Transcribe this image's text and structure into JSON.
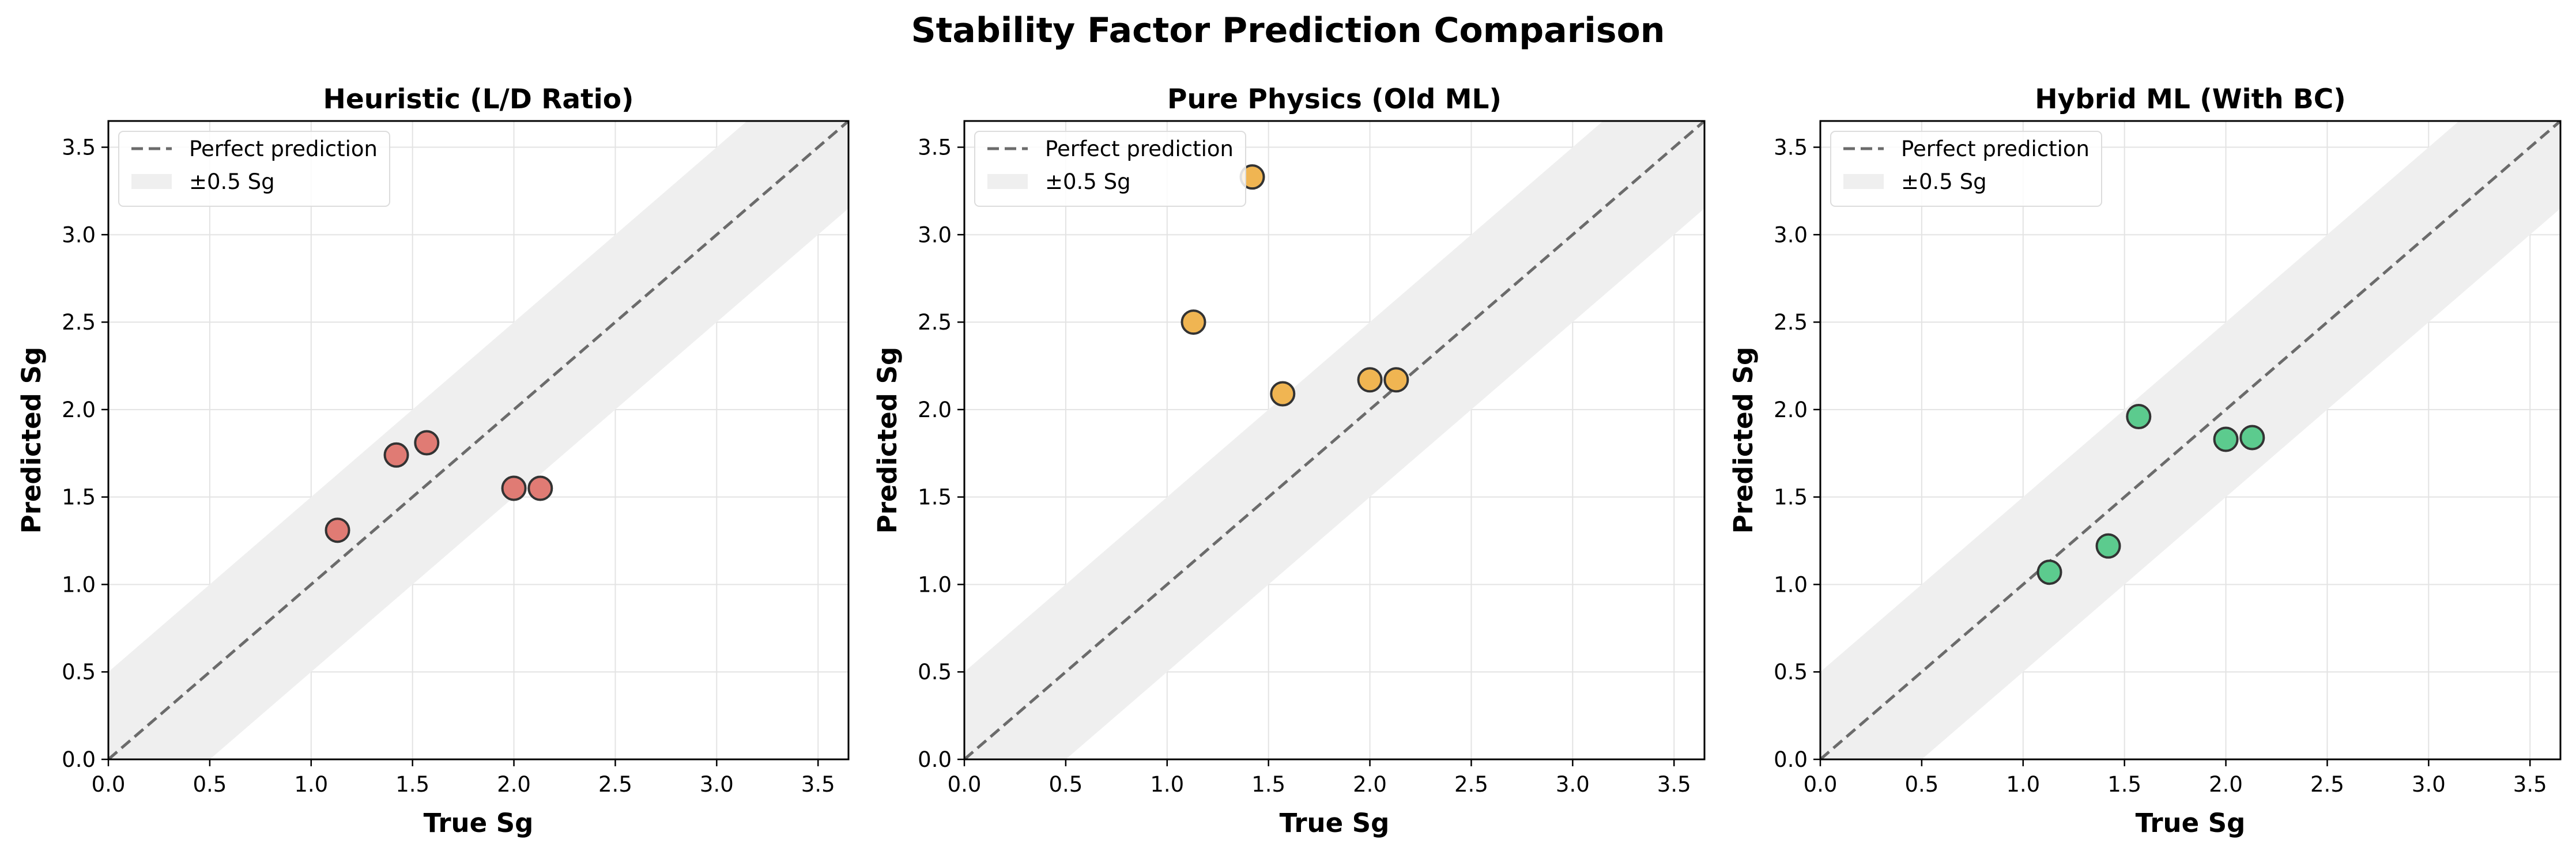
{
  "title": "Stability Factor Prediction Comparison",
  "colors": {
    "reference_line": "#6b6b6b",
    "band": "#efefef",
    "grid": "#e3e3e3",
    "axis": "#000000",
    "marker_edge": "#333333"
  },
  "chart_data": [
    {
      "type": "scatter",
      "title": "Heuristic (L/D Ratio)",
      "xlabel": "True Sg",
      "ylabel": "Predicted Sg",
      "xlim": [
        0,
        3.65
      ],
      "ylim": [
        0,
        3.65
      ],
      "xticks": [
        "0.0",
        "0.5",
        "1.0",
        "1.5",
        "2.0",
        "2.5",
        "3.0",
        "3.5"
      ],
      "yticks": [
        "0.0",
        "0.5",
        "1.0",
        "1.5",
        "2.0",
        "2.5",
        "3.0",
        "3.5"
      ],
      "grid": true,
      "legend_position": "top-left",
      "reference_line": {
        "label": "Perfect prediction",
        "style": "dashed"
      },
      "band": {
        "label": "±0.5 Sg",
        "half_width": 0.5
      },
      "marker_color": "#e07b74",
      "points": [
        {
          "x": 1.13,
          "y": 1.31
        },
        {
          "x": 1.42,
          "y": 1.74
        },
        {
          "x": 1.57,
          "y": 1.81
        },
        {
          "x": 2.0,
          "y": 1.55
        },
        {
          "x": 2.13,
          "y": 1.55
        }
      ]
    },
    {
      "type": "scatter",
      "title": "Pure Physics (Old ML)",
      "xlabel": "True Sg",
      "ylabel": "Predicted Sg",
      "xlim": [
        0,
        3.65
      ],
      "ylim": [
        0,
        3.65
      ],
      "xticks": [
        "0.0",
        "0.5",
        "1.0",
        "1.5",
        "2.0",
        "2.5",
        "3.0",
        "3.5"
      ],
      "yticks": [
        "0.0",
        "0.5",
        "1.0",
        "1.5",
        "2.0",
        "2.5",
        "3.0",
        "3.5"
      ],
      "grid": true,
      "legend_position": "top-left",
      "reference_line": {
        "label": "Perfect prediction",
        "style": "dashed"
      },
      "band": {
        "label": "±0.5 Sg",
        "half_width": 0.5
      },
      "marker_color": "#f0b552",
      "points": [
        {
          "x": 1.13,
          "y": 2.5
        },
        {
          "x": 1.42,
          "y": 3.33
        },
        {
          "x": 1.57,
          "y": 2.09
        },
        {
          "x": 2.0,
          "y": 2.17
        },
        {
          "x": 2.13,
          "y": 2.17
        }
      ]
    },
    {
      "type": "scatter",
      "title": "Hybrid ML (With BC)",
      "xlabel": "True Sg",
      "ylabel": "Predicted Sg",
      "xlim": [
        0,
        3.65
      ],
      "ylim": [
        0,
        3.65
      ],
      "xticks": [
        "0.0",
        "0.5",
        "1.0",
        "1.5",
        "2.0",
        "2.5",
        "3.0",
        "3.5"
      ],
      "yticks": [
        "0.0",
        "0.5",
        "1.0",
        "1.5",
        "2.0",
        "2.5",
        "3.0",
        "3.5"
      ],
      "grid": true,
      "legend_position": "top-left",
      "reference_line": {
        "label": "Perfect prediction",
        "style": "dashed"
      },
      "band": {
        "label": "±0.5 Sg",
        "half_width": 0.5
      },
      "marker_color": "#5ccb8e",
      "points": [
        {
          "x": 1.13,
          "y": 1.07
        },
        {
          "x": 1.42,
          "y": 1.22
        },
        {
          "x": 1.57,
          "y": 1.96
        },
        {
          "x": 2.0,
          "y": 1.83
        },
        {
          "x": 2.13,
          "y": 1.84
        }
      ]
    }
  ]
}
